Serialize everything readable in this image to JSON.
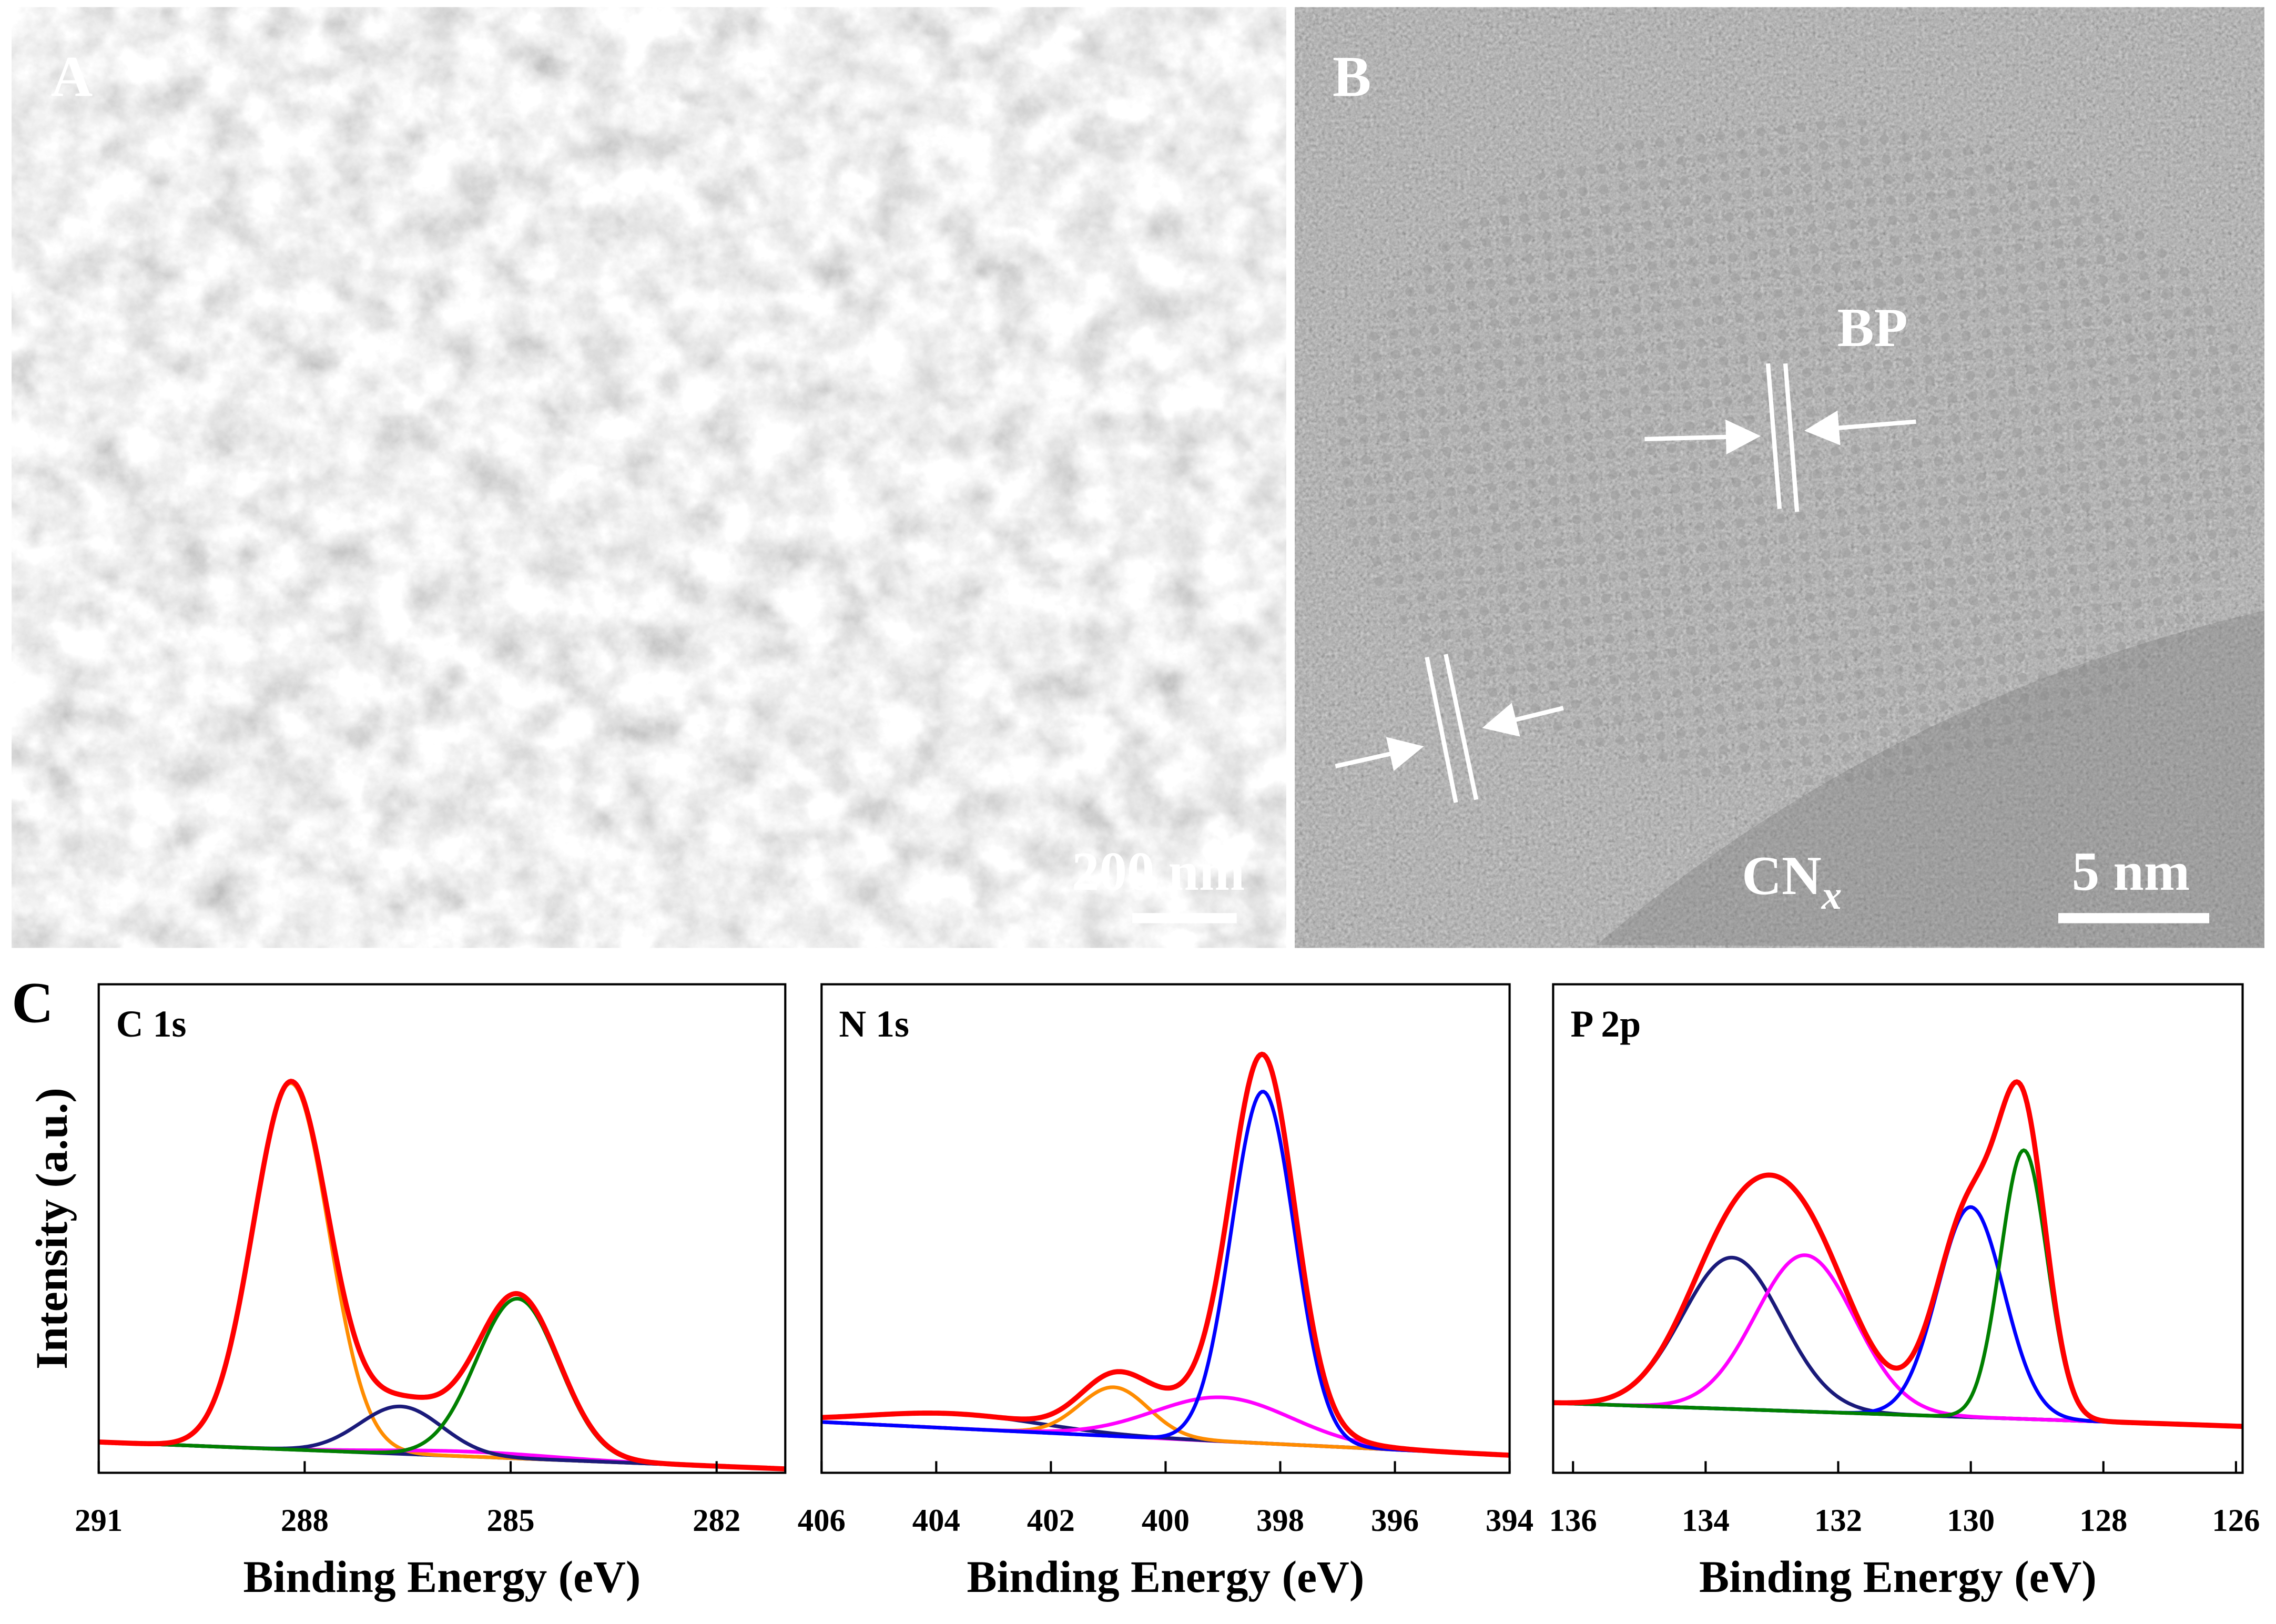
{
  "panels": {
    "a": {
      "label": "A",
      "scale_bar": "200 nm"
    },
    "b": {
      "label": "B",
      "bp_label": "BP",
      "cnx_label": [
        "CN",
        "x"
      ],
      "scale_bar": "5 nm"
    },
    "c": {
      "label": "C"
    }
  },
  "chart_data": [
    {
      "type": "line",
      "title": "C 1s",
      "xlabel": "Binding Energy (eV)",
      "ylabel": "Intensity (a.u.)",
      "xlim": [
        291,
        281
      ],
      "xticks": [
        291,
        288,
        285,
        282
      ],
      "ylim": [
        0,
        100
      ],
      "baseline": [
        6.3,
        0.8
      ],
      "baseline_color": "#1a1a7a",
      "envelope_color": "#ff0000",
      "series": [
        {
          "color": "#ff8c00",
          "center": 288.2,
          "height": 75,
          "sigma": 0.55
        },
        {
          "color": "#ff00ff",
          "center": 285.6,
          "height": 1,
          "sigma": 1.2
        },
        {
          "color": "#1a1a7a",
          "center": 286.6,
          "height": 9.7,
          "sigma": 0.6
        },
        {
          "color": "#008000",
          "center": 284.9,
          "height": 32.7,
          "sigma": 0.6
        }
      ]
    },
    {
      "type": "line",
      "title": "N 1s",
      "xlabel": "Binding Energy (eV)",
      "xlim": [
        406,
        394
      ],
      "xticks": [
        406,
        404,
        402,
        400,
        398,
        396,
        394
      ],
      "ylim": [
        0,
        100
      ],
      "baseline": [
        10.4,
        3.6
      ],
      "baseline_color": "#ff00ff",
      "envelope_color": "#ff0000",
      "series": [
        {
          "color": "#1a1a7a",
          "center": 403.7,
          "height": 3,
          "sigma": 1.5
        },
        {
          "color": "#ff8c00",
          "center": 400.9,
          "height": 10,
          "sigma": 0.6
        },
        {
          "color": "#ff00ff",
          "center": 399,
          "height": 9,
          "sigma": 1.2
        },
        {
          "color": "#0000ff",
          "center": 398.3,
          "height": 72,
          "sigma": 0.55
        }
      ]
    },
    {
      "type": "line",
      "title": "P 2p",
      "xlabel": "Binding Energy (eV)",
      "xlim": [
        136.3,
        125.9
      ],
      "xticks": [
        136,
        134,
        132,
        130,
        128,
        126
      ],
      "ylim": [
        0,
        100
      ],
      "baseline": [
        14.3,
        9.5
      ],
      "baseline_color": "#1a1a7a",
      "envelope_color": "#ff0000",
      "series": [
        {
          "color": "#1a1a7a",
          "center": 133.6,
          "height": 31,
          "sigma": 0.75
        },
        {
          "color": "#ff00ff",
          "center": 132.5,
          "height": 32,
          "sigma": 0.75
        },
        {
          "color": "#0000ff",
          "center": 130,
          "height": 43,
          "sigma": 0.5
        },
        {
          "color": "#008000",
          "center": 129.2,
          "height": 55,
          "sigma": 0.35
        }
      ]
    }
  ]
}
